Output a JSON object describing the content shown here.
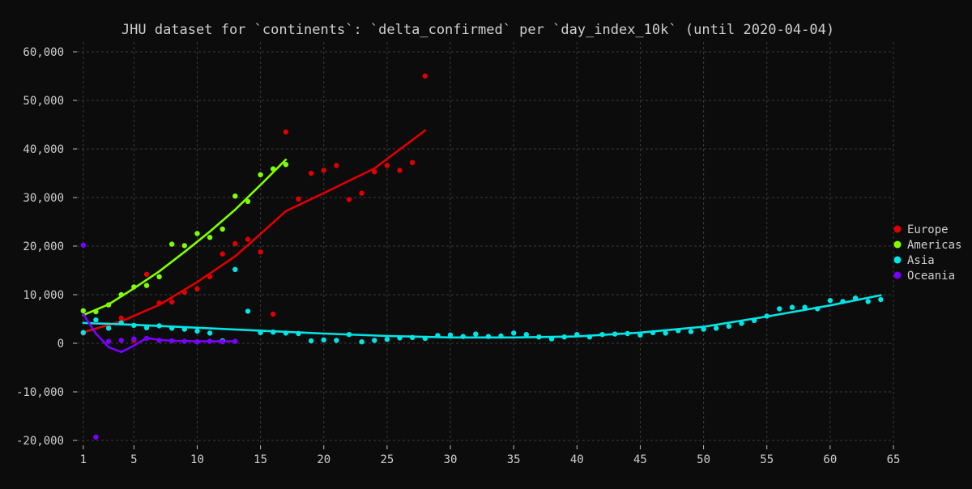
{
  "chart_data": {
    "type": "scatter",
    "title": "JHU dataset for `continents`: `delta_confirmed` per `day_index_10k` (until 2020-04-04)",
    "xlabel": "",
    "ylabel": "",
    "xlim": [
      0.5,
      65
    ],
    "ylim": [
      -21000,
      62000
    ],
    "xticks": [
      1,
      5,
      10,
      15,
      20,
      25,
      30,
      35,
      40,
      45,
      50,
      55,
      60,
      65
    ],
    "yticks": [
      -20000,
      -10000,
      0,
      10000,
      20000,
      30000,
      40000,
      50000,
      60000
    ],
    "ytick_labels": [
      "-20,000",
      "-10,000",
      "0",
      "10,000",
      "20,000",
      "30,000",
      "40,000",
      "50,000",
      "60,000"
    ],
    "grid": true,
    "legend_position": "right",
    "series": [
      {
        "name": "Europe",
        "color": "#e00000",
        "points": [
          [
            1,
            2100
          ],
          [
            2,
            4700
          ],
          [
            3,
            3300
          ],
          [
            4,
            5200
          ],
          [
            5,
            600
          ],
          [
            6,
            14200
          ],
          [
            7,
            8300
          ],
          [
            8,
            8500
          ],
          [
            9,
            10500
          ],
          [
            10,
            11200
          ],
          [
            11,
            13700
          ],
          [
            12,
            18400
          ],
          [
            13,
            20500
          ],
          [
            14,
            21400
          ],
          [
            15,
            18800
          ],
          [
            16,
            6000
          ],
          [
            17,
            43500
          ],
          [
            18,
            29700
          ],
          [
            19,
            35000
          ],
          [
            20,
            35600
          ],
          [
            21,
            36600
          ],
          [
            22,
            29600
          ],
          [
            23,
            30900
          ],
          [
            24,
            35300
          ],
          [
            25,
            36600
          ],
          [
            26,
            35600
          ],
          [
            27,
            37200
          ],
          [
            28,
            55000
          ]
        ],
        "trend": [
          [
            1,
            2300
          ],
          [
            4,
            4500
          ],
          [
            7,
            7900
          ],
          [
            10,
            12600
          ],
          [
            13,
            17900
          ],
          [
            15,
            22500
          ],
          [
            17,
            27200
          ],
          [
            20,
            30900
          ],
          [
            24,
            36000
          ],
          [
            28,
            43800
          ]
        ]
      },
      {
        "name": "Americas",
        "color": "#7fff00",
        "points": [
          [
            1,
            6700
          ],
          [
            2,
            6500
          ],
          [
            3,
            7900
          ],
          [
            4,
            10000
          ],
          [
            5,
            11600
          ],
          [
            6,
            11900
          ],
          [
            7,
            13700
          ],
          [
            8,
            20400
          ],
          [
            9,
            20100
          ],
          [
            10,
            22600
          ],
          [
            11,
            21800
          ],
          [
            12,
            23500
          ],
          [
            13,
            30300
          ],
          [
            14,
            29200
          ],
          [
            15,
            34700
          ],
          [
            16,
            35900
          ],
          [
            17,
            36800
          ]
        ],
        "trend": [
          [
            1,
            5800
          ],
          [
            3,
            8000
          ],
          [
            5,
            11300
          ],
          [
            7,
            14800
          ],
          [
            9,
            18800
          ],
          [
            11,
            23000
          ],
          [
            13,
            27500
          ],
          [
            15,
            32600
          ],
          [
            17,
            37800
          ]
        ]
      },
      {
        "name": "Asia",
        "color": "#00e5e5",
        "points": [
          [
            1,
            2200
          ],
          [
            2,
            4800
          ],
          [
            3,
            3100
          ],
          [
            4,
            4200
          ],
          [
            5,
            3700
          ],
          [
            6,
            3200
          ],
          [
            7,
            3600
          ],
          [
            8,
            3100
          ],
          [
            9,
            2900
          ],
          [
            10,
            2500
          ],
          [
            11,
            2100
          ],
          [
            12,
            500
          ],
          [
            13,
            15200
          ],
          [
            14,
            6600
          ],
          [
            15,
            2200
          ],
          [
            16,
            2300
          ],
          [
            17,
            2100
          ],
          [
            18,
            2000
          ],
          [
            19,
            500
          ],
          [
            20,
            700
          ],
          [
            21,
            600
          ],
          [
            22,
            1800
          ],
          [
            23,
            300
          ],
          [
            24,
            600
          ],
          [
            25,
            800
          ],
          [
            26,
            1100
          ],
          [
            27,
            1200
          ],
          [
            28,
            1000
          ],
          [
            29,
            1600
          ],
          [
            30,
            1700
          ],
          [
            31,
            1400
          ],
          [
            32,
            1900
          ],
          [
            33,
            1400
          ],
          [
            34,
            1500
          ],
          [
            35,
            2100
          ],
          [
            36,
            1800
          ],
          [
            37,
            1300
          ],
          [
            38,
            900
          ],
          [
            39,
            1300
          ],
          [
            40,
            1800
          ],
          [
            41,
            1300
          ],
          [
            42,
            1800
          ],
          [
            43,
            1900
          ],
          [
            44,
            2000
          ],
          [
            45,
            1700
          ],
          [
            46,
            2200
          ],
          [
            47,
            2100
          ],
          [
            48,
            2600
          ],
          [
            49,
            2400
          ],
          [
            50,
            2900
          ],
          [
            51,
            3100
          ],
          [
            52,
            3500
          ],
          [
            53,
            4100
          ],
          [
            54,
            4700
          ],
          [
            55,
            5600
          ],
          [
            56,
            7100
          ],
          [
            57,
            7400
          ],
          [
            58,
            7400
          ],
          [
            59,
            7100
          ],
          [
            60,
            8800
          ],
          [
            61,
            8600
          ],
          [
            62,
            9300
          ],
          [
            63,
            8600
          ],
          [
            64,
            9000
          ]
        ],
        "trend": [
          [
            1,
            4200
          ],
          [
            5,
            3800
          ],
          [
            10,
            3200
          ],
          [
            15,
            2600
          ],
          [
            20,
            2000
          ],
          [
            25,
            1500
          ],
          [
            30,
            1200
          ],
          [
            35,
            1200
          ],
          [
            40,
            1400
          ],
          [
            45,
            2200
          ],
          [
            50,
            3400
          ],
          [
            55,
            5500
          ],
          [
            60,
            7800
          ],
          [
            64,
            9900
          ]
        ]
      },
      {
        "name": "Oceania",
        "color": "#7a00ff",
        "points": [
          [
            1,
            20200
          ],
          [
            2,
            -19300
          ],
          [
            3,
            400
          ],
          [
            4,
            600
          ],
          [
            5,
            900
          ],
          [
            6,
            1000
          ],
          [
            7,
            600
          ],
          [
            8,
            500
          ],
          [
            9,
            400
          ],
          [
            10,
            300
          ],
          [
            11,
            400
          ],
          [
            12,
            300
          ],
          [
            13,
            400
          ]
        ],
        "trend": [
          [
            1,
            6000
          ],
          [
            2,
            2000
          ],
          [
            3,
            -800
          ],
          [
            4,
            -1800
          ],
          [
            5,
            -500
          ],
          [
            6,
            1100
          ],
          [
            7,
            700
          ],
          [
            8,
            500
          ],
          [
            10,
            400
          ],
          [
            13,
            400
          ]
        ]
      }
    ]
  }
}
